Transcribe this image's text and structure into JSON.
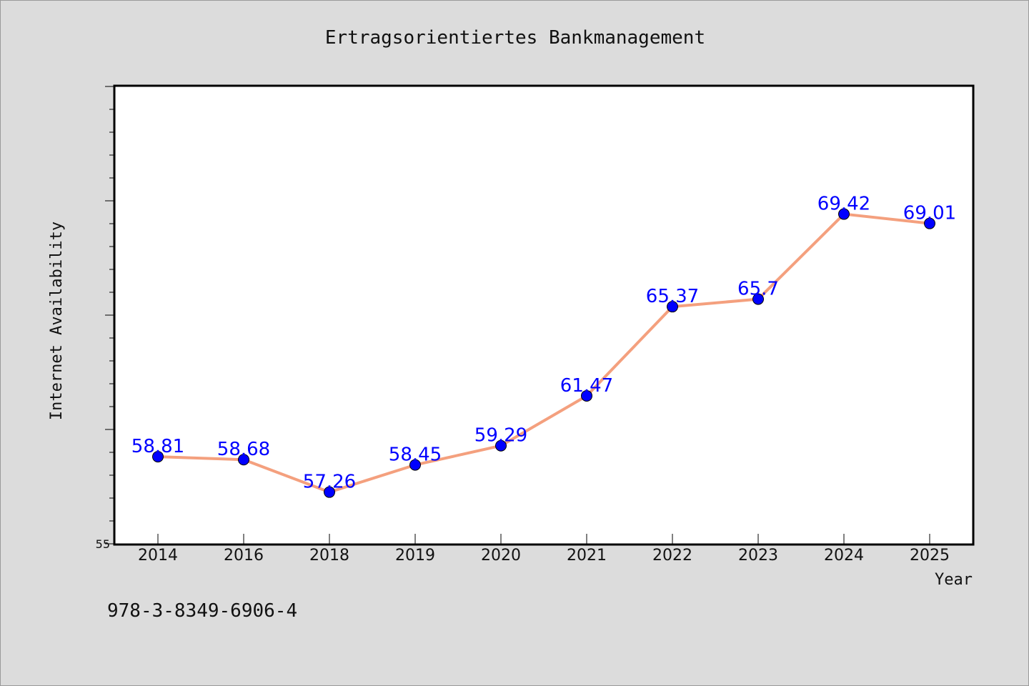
{
  "chart_data": {
    "type": "line",
    "title": "Ertragsorientiertes Bankmanagement",
    "xlabel": "Year",
    "ylabel": "Internet Availability",
    "categories": [
      "2014",
      "2016",
      "2018",
      "2019",
      "2020",
      "2021",
      "2022",
      "2023",
      "2024",
      "2025"
    ],
    "series": [
      {
        "values": [
          58.81,
          58.68,
          57.26,
          58.45,
          59.29,
          61.47,
          65.37,
          65.7,
          69.42,
          69.01
        ],
        "labels": [
          "58.81",
          "58.68",
          "57.26",
          "58.45",
          "59.29",
          "61.47",
          "65.37",
          "65.7",
          "69.42",
          "69.01"
        ]
      }
    ],
    "ylim": [
      55,
      75
    ],
    "y_tick_labels": [
      "55"
    ],
    "grid": false,
    "legend": "none",
    "colors": {
      "line": "#f4a07e",
      "marker": "#0000ff",
      "data_label": "#0000ff",
      "plot_background": "#ffffff",
      "figure_background": "#dcdcdc"
    }
  },
  "footer": {
    "isbn": "978-3-8349-6906-4"
  }
}
